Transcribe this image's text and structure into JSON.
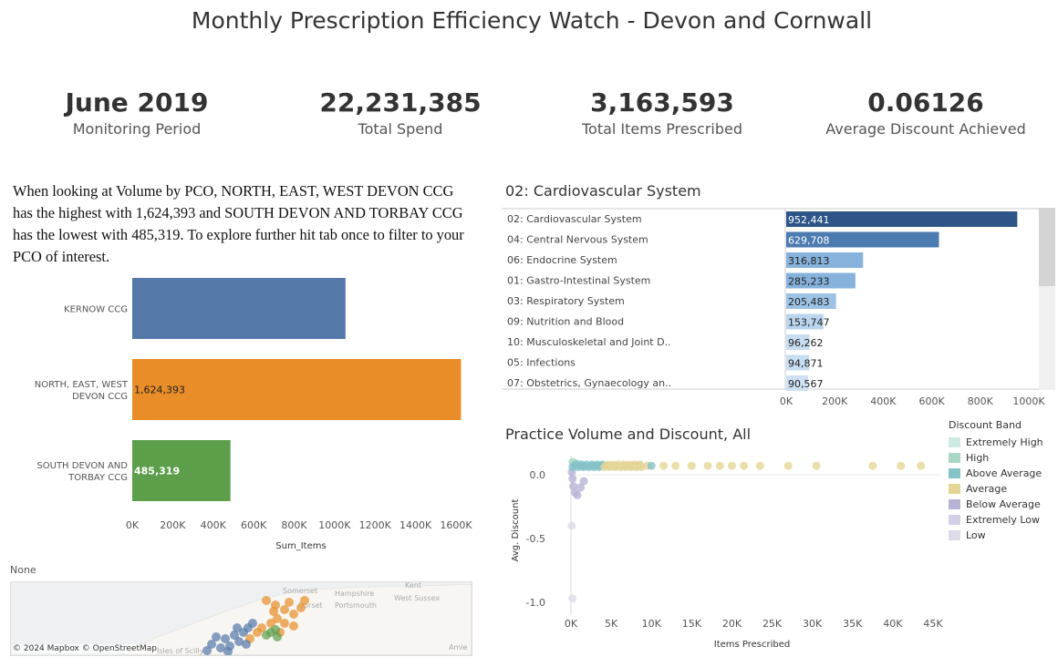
{
  "title": "Monthly Prescription Efficiency Watch -  Devon and Cornwall",
  "kpis": [
    {
      "value": "June 2019",
      "label": "Monitoring Period"
    },
    {
      "value": "22,231,385",
      "label": "Total Spend"
    },
    {
      "value": "3,163,593",
      "label": "Total Items Prescribed"
    },
    {
      "value": "0.06126",
      "label": "Average Discount Achieved"
    }
  ],
  "narrative": "When looking at Volume by PCO, NORTH, EAST, WEST DEVON CCG has the highest with 1,624,393 and SOUTH DEVON AND TORBAY CCG has the lowest with 485,319. To explore further hit tab once to filter to your PCO of interest.",
  "pco_chart": {
    "xlabel": "Sum_Items",
    "ticks": [
      "0K",
      "200K",
      "400K",
      "600K",
      "800K",
      "1000K",
      "1200K",
      "1400K",
      "1600K"
    ],
    "categories": [
      {
        "label_lines": [
          "KERNOW CCG"
        ],
        "value": 1053881,
        "color": "#5478a8",
        "label": ""
      },
      {
        "label_lines": [
          "NORTH, EAST, WEST",
          "DEVON CCG"
        ],
        "value": 1624393,
        "color": "#e88d27",
        "label": "1,624,393"
      },
      {
        "label_lines": [
          "SOUTH DEVON AND",
          "TORBAY CCG"
        ],
        "value": 485319,
        "color": "#5c9e4a",
        "label": "485,319"
      }
    ],
    "max": 1700000
  },
  "map": {
    "caption": "None",
    "attribution": "© 2024 Mapbox  © OpenStreetMap",
    "place_labels": [
      "Somerset",
      "Hampshire",
      "Dorset",
      "Portsmouth",
      "West Sussex",
      "Kent",
      "Amie",
      "Isles of Scilly"
    ]
  },
  "bnf_chart": {
    "title": "02: Cardiovascular System",
    "ticks": [
      "0K",
      "200K",
      "400K",
      "600K",
      "800K",
      "1000K"
    ],
    "max": 1000000,
    "rows": [
      {
        "label": "02: Cardiovascular System",
        "value": 952441,
        "value_label": "952,441",
        "color": "#2d5587"
      },
      {
        "label": "04: Central Nervous System",
        "value": 629708,
        "value_label": "629,708",
        "color": "#4c7bb0"
      },
      {
        "label": "06: Endocrine System",
        "value": 316813,
        "value_label": "316,813",
        "color": "#86b2dc"
      },
      {
        "label": "01: Gastro-Intestinal System",
        "value": 285233,
        "value_label": "285,233",
        "color": "#86b2dc"
      },
      {
        "label": "03: Respiratory System",
        "value": 205483,
        "value_label": "205,483",
        "color": "#9cc3e6"
      },
      {
        "label": "09: Nutrition and Blood",
        "value": 153747,
        "value_label": "153,747",
        "color": "#bad5ee"
      },
      {
        "label": "10: Musculoskeletal and Joint D..",
        "value": 96262,
        "value_label": "96,262",
        "color": "#c7ddf1"
      },
      {
        "label": "05: Infections",
        "value": 94871,
        "value_label": "94,871",
        "color": "#c7ddf1"
      },
      {
        "label": "07: Obstetrics, Gynaecology an..",
        "value": 90567,
        "value_label": "90,567",
        "color": "#cde1f3"
      }
    ]
  },
  "scatter": {
    "title": "Practice Volume and Discount,  All",
    "xlabel": "Items Prescribed",
    "ylabel": "Avg. Discount",
    "xticks": [
      "0K",
      "5K",
      "10K",
      "15K",
      "20K",
      "25K",
      "30K",
      "35K",
      "40K",
      "45K"
    ],
    "yticks": [
      "0.0",
      "-0.5",
      "-1.0"
    ],
    "xmax": 45000,
    "ymin": -1.0,
    "ymax": 0.1
  },
  "legend": {
    "title": "Discount Band",
    "items": [
      {
        "label": "Extremely High",
        "color": "#cde9e1"
      },
      {
        "label": "High",
        "color": "#a9d6c5"
      },
      {
        "label": "Above Average",
        "color": "#86c3c8"
      },
      {
        "label": "Average",
        "color": "#e5d696"
      },
      {
        "label": "Below Average",
        "color": "#b7b3d6"
      },
      {
        "label": "Extremely Low",
        "color": "#d2d0e6"
      },
      {
        "label": "Low",
        "color": "#dcdbe9"
      }
    ]
  },
  "chart_data": [
    {
      "type": "bar",
      "title": "",
      "xlabel": "Sum_Items",
      "categories": [
        "KERNOW CCG",
        "NORTH, EAST, WEST DEVON CCG",
        "SOUTH DEVON AND TORBAY CCG"
      ],
      "values": [
        1053881,
        1624393,
        485319
      ],
      "xlim": [
        0,
        1700000
      ]
    },
    {
      "type": "bar",
      "title": "02: Cardiovascular System",
      "categories": [
        "02: Cardiovascular System",
        "04: Central Nervous System",
        "06: Endocrine System",
        "01: Gastro-Intestinal System",
        "03: Respiratory System",
        "09: Nutrition and Blood",
        "10: Musculoskeletal and Joint D..",
        "05: Infections",
        "07: Obstetrics, Gynaecology an.."
      ],
      "values": [
        952441,
        629708,
        316813,
        285233,
        205483,
        153747,
        96262,
        94871,
        90567
      ],
      "xlim": [
        0,
        1000000
      ]
    },
    {
      "type": "scatter",
      "title": "Practice Volume and Discount,  All",
      "xlabel": "Items Prescribed",
      "ylabel": "Avg. Discount",
      "xlim": [
        0,
        45000
      ],
      "ylim": [
        -1.0,
        0.1
      ],
      "series": [
        {
          "name": "Average",
          "points": [
            [
              11500,
              0.07
            ],
            [
              13000,
              0.07
            ],
            [
              15000,
              0.07
            ],
            [
              17000,
              0.07
            ],
            [
              18500,
              0.07
            ],
            [
              20000,
              0.07
            ],
            [
              21500,
              0.07
            ],
            [
              23500,
              0.07
            ],
            [
              27000,
              0.07
            ],
            [
              30500,
              0.07
            ],
            [
              37500,
              0.07
            ],
            [
              41000,
              0.07
            ],
            [
              43500,
              0.07
            ],
            [
              9500,
              0.07
            ],
            [
              8000,
              0.07
            ]
          ]
        },
        {
          "name": "Above Average",
          "points": [
            [
              500,
              0.08
            ],
            [
              1500,
              0.07
            ],
            [
              2500,
              0.07
            ],
            [
              3500,
              0.07
            ],
            [
              4500,
              0.07
            ],
            [
              5500,
              0.07
            ],
            [
              6500,
              0.07
            ],
            [
              7500,
              0.07
            ],
            [
              8500,
              0.07
            ],
            [
              10000,
              0.07
            ]
          ]
        },
        {
          "name": "High",
          "points": [
            [
              200,
              0.1
            ],
            [
              600,
              0.09
            ],
            [
              1200,
              0.08
            ]
          ]
        },
        {
          "name": "Below Average",
          "points": [
            [
              100,
              0.02
            ],
            [
              200,
              -0.03
            ],
            [
              300,
              -0.09
            ],
            [
              500,
              -0.14
            ],
            [
              800,
              -0.16
            ],
            [
              1200,
              -0.1
            ],
            [
              1600,
              -0.05
            ]
          ]
        },
        {
          "name": "Low",
          "points": [
            [
              100,
              -0.4
            ],
            [
              200,
              -0.97
            ]
          ]
        }
      ]
    }
  ]
}
